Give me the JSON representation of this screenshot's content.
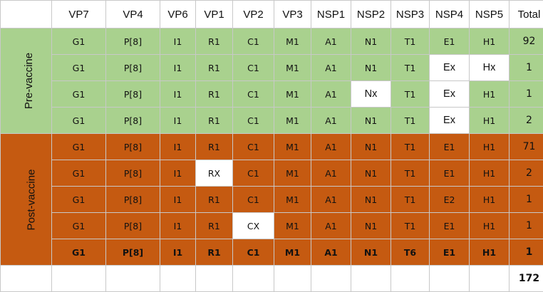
{
  "columns": [
    "VP7",
    "VP4",
    "VP6",
    "VP1",
    "VP2",
    "VP3",
    "NSP1",
    "NSP2",
    "NSP3",
    "NSP4",
    "NSP5",
    "Total"
  ],
  "groups": [
    {
      "label": "Pre-vaccine",
      "color": "#a9d18e",
      "rows": [
        {
          "cells": [
            "G1",
            "P[8]",
            "I1",
            "R1",
            "C1",
            "M1",
            "A1",
            "N1",
            "T1",
            "E1",
            "H1",
            "92"
          ],
          "highlight": [],
          "bold": false
        },
        {
          "cells": [
            "G1",
            "P[8]",
            "I1",
            "R1",
            "C1",
            "M1",
            "A1",
            "N1",
            "T1",
            "Ex",
            "Hx",
            "1"
          ],
          "highlight": [
            9,
            10
          ],
          "bold": false
        },
        {
          "cells": [
            "G1",
            "P[8]",
            "I1",
            "R1",
            "C1",
            "M1",
            "A1",
            "Nx",
            "T1",
            "Ex",
            "H1",
            "1"
          ],
          "highlight": [
            7,
            9
          ],
          "bold": false
        },
        {
          "cells": [
            "G1",
            "P[8]",
            "I1",
            "R1",
            "C1",
            "M1",
            "A1",
            "N1",
            "T1",
            "Ex",
            "H1",
            "2"
          ],
          "highlight": [
            9
          ],
          "bold": false
        }
      ]
    },
    {
      "label": "Post-vaccine",
      "color": "#c55a11",
      "rows": [
        {
          "cells": [
            "G1",
            "P[8]",
            "I1",
            "R1",
            "C1",
            "M1",
            "A1",
            "N1",
            "T1",
            "E1",
            "H1",
            "71"
          ],
          "highlight": [],
          "bold": false
        },
        {
          "cells": [
            "G1",
            "P[8]",
            "I1",
            "RX",
            "C1",
            "M1",
            "A1",
            "N1",
            "T1",
            "E1",
            "H1",
            "2"
          ],
          "highlight": [
            3
          ],
          "bold": false
        },
        {
          "cells": [
            "G1",
            "P[8]",
            "I1",
            "R1",
            "C1",
            "M1",
            "A1",
            "N1",
            "T1",
            "E2",
            "H1",
            "1"
          ],
          "highlight": [],
          "bold": false
        },
        {
          "cells": [
            "G1",
            "P[8]",
            "I1",
            "R1",
            "CX",
            "M1",
            "A1",
            "N1",
            "T1",
            "E1",
            "H1",
            "1"
          ],
          "highlight": [
            4
          ],
          "bold": false
        },
        {
          "cells": [
            "G1",
            "P[8]",
            "I1",
            "R1",
            "C1",
            "M1",
            "A1",
            "N1",
            "T6",
            "E1",
            "H1",
            "1"
          ],
          "highlight": [],
          "bold": true
        }
      ]
    }
  ],
  "grand_total": "172",
  "colors": {
    "pre": "#a9d18e",
    "post": "#c55a11",
    "highlight": "#ffffff",
    "border": "#c8c8c8"
  }
}
